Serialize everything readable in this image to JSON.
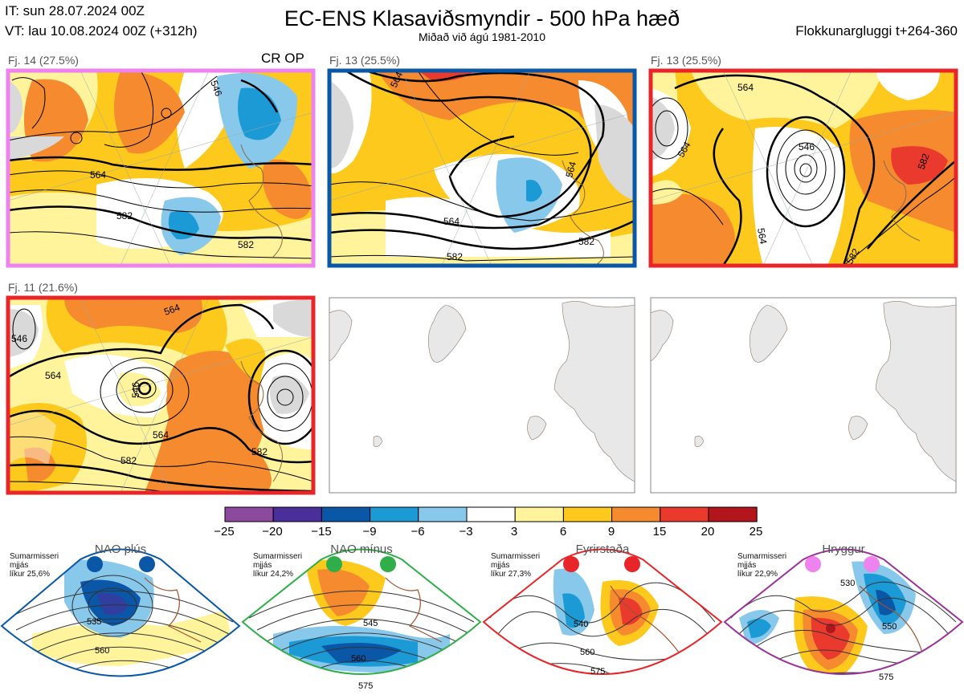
{
  "header": {
    "it": "IT: sun 28.07.2024 00Z",
    "vt": "VT: lau 10.08.2024 00Z  (+312h)",
    "title": "EC-ENS Klasaviðsmyndir - 500 hPa hæð",
    "subtitle": "Miðað við ágú 1981-2010",
    "window": "Flokkunargluggi t+264-360"
  },
  "panels": [
    {
      "label": "Fj. 14 (27.5%)",
      "extra": "CR OP",
      "frame_color": "#ee82ee",
      "contours": [
        "546",
        "564",
        "582",
        "582"
      ]
    },
    {
      "label": "Fj. 13 (25.5%)",
      "frame_color": "#0a57a8",
      "contours": [
        "564",
        "564",
        "564",
        "582",
        "582"
      ]
    },
    {
      "label": "Fj. 13 (25.5%)",
      "frame_color": "#e8262a",
      "contours": [
        "564",
        "546",
        "564",
        "564",
        "582",
        "582"
      ]
    },
    {
      "label": "Fj. 11 (21.6%)",
      "frame_color": "#e8262a",
      "contours": [
        "546",
        "564",
        "564",
        "546",
        "564",
        "582",
        "582"
      ]
    }
  ],
  "chart_data": {
    "type": "heatmap",
    "title": "EC-ENS Klasaviðsmyndir - 500 hPa hæð",
    "colorbar": {
      "ticks": [
        "−25",
        "−20",
        "−15",
        "−9",
        "−6",
        "−3",
        "3",
        "6",
        "9",
        "15",
        "20",
        "25"
      ],
      "colors": [
        "#8c4a9c",
        "#4a2f9a",
        "#0a57a8",
        "#1c9ad6",
        "#88c8ea",
        "#ffffff",
        "#fff49c",
        "#fcc91c",
        "#f58a2f",
        "#ea3a2d",
        "#b2151c"
      ]
    },
    "regimes": [
      {
        "name": "NAO plús",
        "dot_color": "#0a57a8",
        "note": [
          "Sumarmisseri",
          "mjjás",
          "líkur 25,6%"
        ],
        "contours": [
          "535",
          "560"
        ]
      },
      {
        "name": "NAO mínus",
        "dot_color": "#2fae4a",
        "note": [
          "Sumarmisseri",
          "mjjás",
          "líkur 24,2%"
        ],
        "contours": [
          "545",
          "560",
          "575"
        ]
      },
      {
        "name": "Fyrirstaða",
        "dot_color": "#e8262a",
        "note": [
          "Sumarmisseri",
          "mjjás",
          "líkur 27,3%"
        ],
        "contours": [
          "540",
          "560",
          "575"
        ]
      },
      {
        "name": "Hryggur",
        "dot_color": "#ee82ee",
        "note": [
          "Sumarmisseri",
          "mjjás",
          "líkur 22,9%"
        ],
        "contours": [
          "530",
          "550",
          "575"
        ]
      }
    ]
  }
}
